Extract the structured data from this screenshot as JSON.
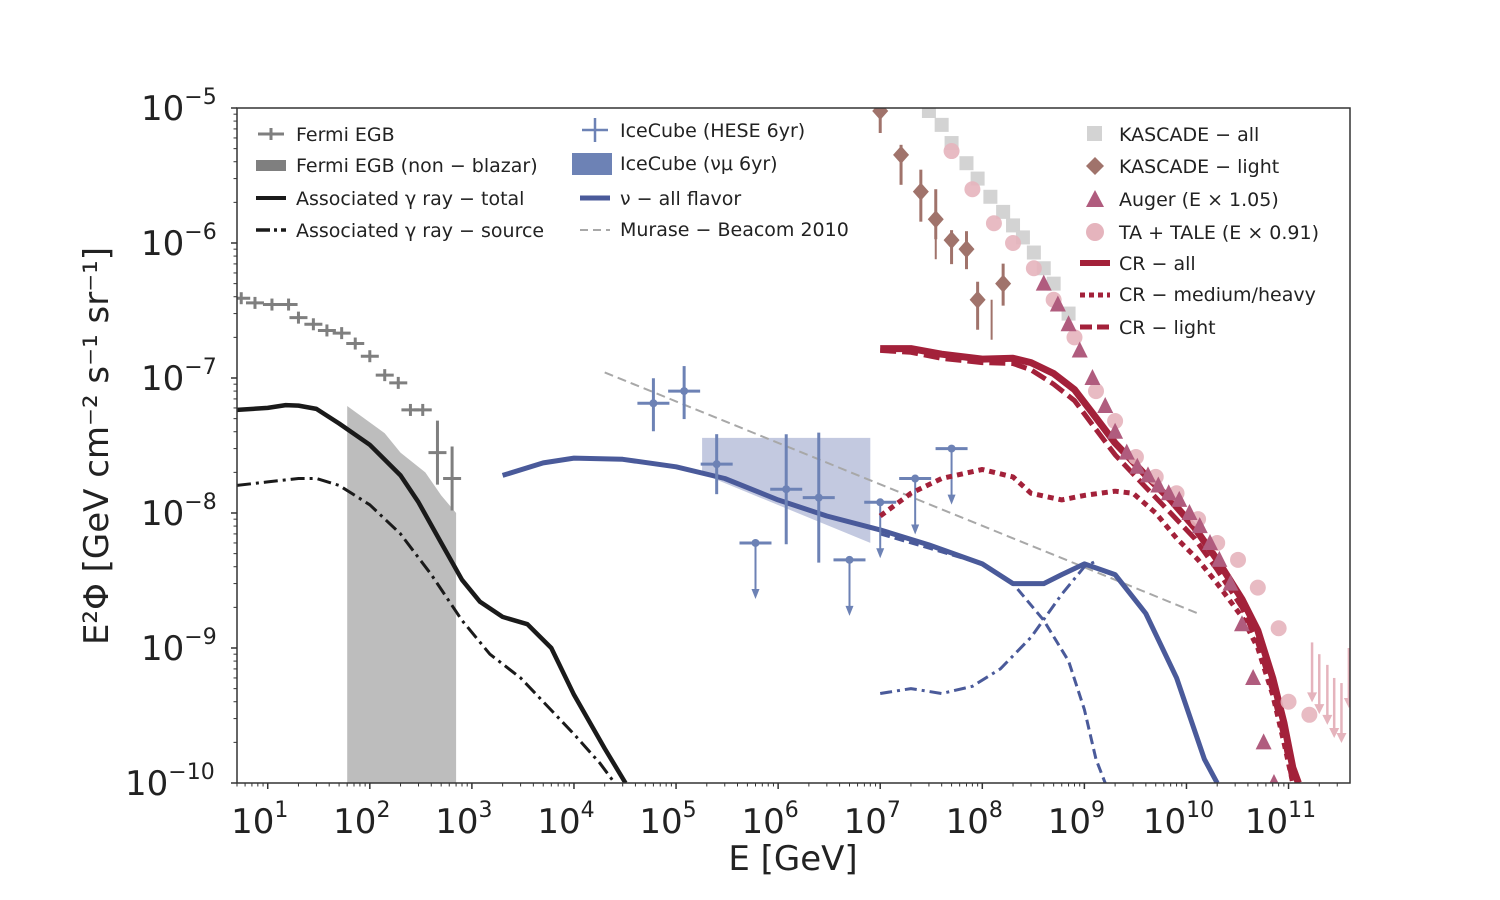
{
  "chart_data": {
    "type": "line",
    "xlabel": "E [GeV]",
    "ylabel": "E²Φ [GeV cm⁻² s⁻¹ sr⁻¹]",
    "xscale": "log",
    "yscale": "log",
    "xlim": [
      5,
      400000000000
    ],
    "ylim": [
      1e-10,
      1e-05
    ],
    "x_ticks": [
      {
        "value": 10,
        "base": "10",
        "exp": "1"
      },
      {
        "value": 100,
        "base": "10",
        "exp": "2"
      },
      {
        "value": 1000,
        "base": "10",
        "exp": "3"
      },
      {
        "value": 10000,
        "base": "10",
        "exp": "4"
      },
      {
        "value": 100000,
        "base": "10",
        "exp": "5"
      },
      {
        "value": 1000000,
        "base": "10",
        "exp": "6"
      },
      {
        "value": 10000000,
        "base": "10",
        "exp": "7"
      },
      {
        "value": 100000000,
        "base": "10",
        "exp": "8"
      },
      {
        "value": 1000000000,
        "base": "10",
        "exp": "9"
      },
      {
        "value": 10000000000,
        "base": "10",
        "exp": "10"
      },
      {
        "value": 100000000000,
        "base": "10",
        "exp": "11"
      }
    ],
    "y_ticks": [
      {
        "value": 1e-05,
        "base": "10",
        "exp": "−5"
      },
      {
        "value": 1e-06,
        "base": "10",
        "exp": "−6"
      },
      {
        "value": 1e-07,
        "base": "10",
        "exp": "−7"
      },
      {
        "value": 1e-08,
        "base": "10",
        "exp": "−8"
      },
      {
        "value": 1e-09,
        "base": "10",
        "exp": "−9"
      },
      {
        "value": 1e-10,
        "base": "10",
        "exp": "−10"
      }
    ],
    "legend": {
      "col1": [
        "Fermi EGB",
        "Fermi EGB (non − blazar)",
        "Associated γ ray − total",
        "Associated γ ray − source"
      ],
      "col2": [
        "IceCube (HESE 6yr)",
        "IceCube (νμ 6yr)",
        "ν − all flavor",
        "Murase − Beacom 2010"
      ],
      "col3": [
        "KASCADE − all",
        "KASCADE − light",
        "Auger (E × 1.05)",
        "TA + TALE (E × 0.91)",
        "CR − all",
        "CR − medium/heavy",
        "CR − light"
      ]
    },
    "colors": {
      "fermi": "#7f7f7f",
      "fermi_band": "#bdbdbd",
      "gamma": "#1a1a1a",
      "neutrino": "#4a5a9a",
      "neutrino_band": "#c3c9e0",
      "icecube": "#6d82b5",
      "murase": "#a8a8a8",
      "cr": "#a3213a",
      "kascade_all": "#d3d3d3",
      "kascade_light": "#a0736b",
      "auger": "#b05c7e",
      "ta": "#e5b4bd"
    },
    "series": [
      {
        "name": "Fermi EGB",
        "kind": "errorbar",
        "points": [
          [
            5.5,
            3.9e-07
          ],
          [
            7.5,
            3.6e-07
          ],
          [
            11,
            3.5e-07
          ],
          [
            16,
            3.5e-07
          ],
          [
            20,
            2.8e-07
          ],
          [
            28,
            2.5e-07
          ],
          [
            38,
            2.25e-07
          ],
          [
            53,
            2.15e-07
          ],
          [
            72,
            1.8e-07
          ],
          [
            100,
            1.45e-07
          ],
          [
            140,
            1.05e-07
          ],
          [
            190,
            9.2e-08
          ],
          [
            250,
            5.8e-08
          ],
          [
            330,
            5.8e-08
          ],
          [
            460,
            2.8e-08
          ],
          [
            640,
            1.8e-08
          ]
        ]
      },
      {
        "name": "Fermi EGB (non − blazar)",
        "kind": "band",
        "upper": [
          [
            60,
            6.2e-08
          ],
          [
            140,
            3.9e-08
          ],
          [
            200,
            2.8e-08
          ],
          [
            350,
            2e-08
          ],
          [
            500,
            1.35e-08
          ],
          [
            700,
            1e-08
          ]
        ],
        "lower": [
          [
            60,
            1e-10
          ],
          [
            700,
            1e-10
          ]
        ]
      },
      {
        "name": "Associated γ ray − total",
        "kind": "line",
        "points": [
          [
            5,
            5.8e-08
          ],
          [
            10,
            6e-08
          ],
          [
            15,
            6.3e-08
          ],
          [
            20,
            6.25e-08
          ],
          [
            30,
            5.9e-08
          ],
          [
            50,
            4.6e-08
          ],
          [
            100,
            3.2e-08
          ],
          [
            200,
            1.9e-08
          ],
          [
            300,
            1.2e-08
          ],
          [
            500,
            6e-09
          ],
          [
            800,
            3.2e-09
          ],
          [
            1200,
            2.2e-09
          ],
          [
            2000,
            1.7e-09
          ],
          [
            3500,
            1.5e-09
          ],
          [
            6000,
            1e-09
          ],
          [
            10000,
            4.5e-10
          ],
          [
            20000,
            1.8e-10
          ],
          [
            32000,
            1e-10
          ]
        ]
      },
      {
        "name": "Associated γ ray − source",
        "kind": "line",
        "points": [
          [
            5,
            1.6e-08
          ],
          [
            10,
            1.7e-08
          ],
          [
            20,
            1.8e-08
          ],
          [
            30,
            1.8e-08
          ],
          [
            50,
            1.6e-08
          ],
          [
            100,
            1.15e-08
          ],
          [
            200,
            7e-09
          ],
          [
            400,
            3.5e-09
          ],
          [
            800,
            1.6e-09
          ],
          [
            1500,
            9e-10
          ],
          [
            3000,
            6e-10
          ],
          [
            5000,
            4e-10
          ],
          [
            10000,
            2.3e-10
          ],
          [
            18000,
            1.4e-10
          ],
          [
            25000,
            1e-10
          ]
        ]
      },
      {
        "name": "IceCube (HESE 6yr)",
        "kind": "errorbar",
        "points": [
          [
            60000,
            6.5e-08
          ],
          [
            120000,
            8e-08
          ],
          [
            250000,
            2.3e-08
          ],
          [
            600000,
            6e-09
          ],
          [
            1200000,
            1.5e-08
          ],
          [
            2500000,
            1.3e-08
          ],
          [
            5000000,
            4.5e-09
          ],
          [
            10000000,
            1.2e-08
          ],
          [
            22000000,
            1.8e-08
          ],
          [
            50000000,
            3e-08
          ]
        ]
      },
      {
        "name": "IceCube (νμ 6yr)",
        "kind": "band",
        "upper": [
          [
            180000,
            3.6e-08
          ],
          [
            8000000,
            3.6e-08
          ]
        ],
        "lower": [
          [
            180000,
            1.95e-08
          ],
          [
            8000000,
            6e-09
          ]
        ]
      },
      {
        "name": "ν − all flavor",
        "kind": "line",
        "points": [
          [
            2000,
            1.9e-08
          ],
          [
            5000,
            2.35e-08
          ],
          [
            10000,
            2.55e-08
          ],
          [
            30000,
            2.5e-08
          ],
          [
            100000,
            2.2e-08
          ],
          [
            300000,
            1.8e-08
          ],
          [
            1000000,
            1.25e-08
          ],
          [
            3000000,
            9.5e-09
          ],
          [
            10000000,
            7.5e-09
          ],
          [
            30000000,
            5.8e-09
          ],
          [
            100000000,
            4.2e-09
          ],
          [
            200000000,
            3e-09
          ],
          [
            400000000,
            3e-09
          ],
          [
            600000000,
            3.5e-09
          ],
          [
            1000000000,
            4.2e-09
          ],
          [
            2000000000,
            3.5e-09
          ],
          [
            4000000000,
            1.8e-09
          ],
          [
            8000000000,
            6e-10
          ],
          [
            15000000000,
            1.5e-10
          ],
          [
            20000000000,
            1e-10
          ]
        ]
      },
      {
        "name": "ν − source (dash-dot)",
        "kind": "line",
        "points": [
          [
            10000000,
            4.6e-10
          ],
          [
            20000000,
            5e-10
          ],
          [
            40000000,
            4.6e-10
          ],
          [
            80000000,
            5.2e-10
          ],
          [
            150000000,
            7e-10
          ],
          [
            300000000,
            1.2e-09
          ],
          [
            600000000,
            2.5e-09
          ],
          [
            1000000000,
            4e-09
          ],
          [
            1300000000,
            4.4e-09
          ]
        ]
      },
      {
        "name": "ν − CR (dashed)",
        "kind": "line",
        "points": [
          [
            10000000,
            7e-09
          ],
          [
            30000000,
            5.5e-09
          ],
          [
            100000000,
            4.2e-09
          ],
          [
            200000000,
            3e-09
          ],
          [
            400000000,
            1.6e-09
          ],
          [
            700000000,
            8e-10
          ],
          [
            1000000000,
            3.5e-10
          ],
          [
            1300000000,
            1.5e-10
          ],
          [
            1600000000,
            1e-10
          ]
        ]
      },
      {
        "name": "Murase − Beacom 2010",
        "kind": "line",
        "points": [
          [
            20000,
            1.1e-07
          ],
          [
            13000000000,
            1.8e-09
          ]
        ]
      },
      {
        "name": "KASCADE − all",
        "kind": "scatter",
        "points": [
          [
            30000000,
            9.5e-06
          ],
          [
            40000000,
            7.5e-06
          ],
          [
            50000000,
            5.5e-06
          ],
          [
            70000000,
            3.9e-06
          ],
          [
            90000000,
            3e-06
          ],
          [
            120000000,
            2.2e-06
          ],
          [
            160000000,
            1.7e-06
          ],
          [
            200000000,
            1.35e-06
          ],
          [
            250000000,
            1.1e-06
          ],
          [
            320000000,
            8.5e-07
          ],
          [
            400000000,
            6.5e-07
          ],
          [
            500000000,
            5e-07
          ],
          [
            700000000,
            3e-07
          ]
        ]
      },
      {
        "name": "KASCADE − light",
        "kind": "errorbar",
        "points": [
          [
            10000000,
            9.5e-06
          ],
          [
            16000000,
            4.5e-06
          ],
          [
            25000000,
            2.4e-06
          ],
          [
            35000000,
            1.5e-06
          ],
          [
            50000000,
            1.05e-06
          ],
          [
            70000000,
            9e-07
          ],
          [
            90000000,
            3.8e-07
          ],
          [
            160000000,
            5e-07
          ]
        ]
      },
      {
        "name": "Auger (E × 1.05)",
        "kind": "scatter",
        "points": [
          [
            400000000,
            5e-07
          ],
          [
            550000000,
            3.5e-07
          ],
          [
            700000000,
            2.5e-07
          ],
          [
            900000000,
            1.6e-07
          ],
          [
            1200000000,
            1e-07
          ],
          [
            1600000000,
            6.2e-08
          ],
          [
            2000000000,
            4e-08
          ],
          [
            2600000000,
            2.8e-08
          ],
          [
            3300000000,
            2.2e-08
          ],
          [
            4200000000,
            1.9e-08
          ],
          [
            5300000000,
            1.6e-08
          ],
          [
            6700000000,
            1.4e-08
          ],
          [
            8500000000,
            1.25e-08
          ],
          [
            10700000000,
            1e-08
          ],
          [
            13500000000,
            8e-09
          ],
          [
            17000000000,
            6e-09
          ],
          [
            21000000000,
            4.5e-09
          ],
          [
            27000000000,
            3e-09
          ],
          [
            35000000000,
            1.5e-09
          ],
          [
            45000000000,
            6e-10
          ],
          [
            57000000000,
            2e-10
          ],
          [
            72000000000,
            1e-10
          ]
        ]
      },
      {
        "name": "TA + TALE (E × 0.91)",
        "kind": "scatter",
        "points": [
          [
            50000000,
            4.8e-06
          ],
          [
            80000000,
            2.5e-06
          ],
          [
            130000000,
            1.4e-06
          ],
          [
            200000000,
            1e-06
          ],
          [
            320000000,
            6.5e-07
          ],
          [
            500000000,
            3.8e-07
          ],
          [
            800000000,
            2e-07
          ],
          [
            1300000000,
            8e-08
          ],
          [
            2000000000,
            4.8e-08
          ],
          [
            3200000000,
            2.6e-08
          ],
          [
            5000000000,
            1.85e-08
          ],
          [
            8000000000,
            1.4e-08
          ],
          [
            13000000000,
            9e-09
          ],
          [
            20000000000,
            6e-09
          ],
          [
            32000000000,
            4.5e-09
          ],
          [
            50000000000,
            2.8e-09
          ],
          [
            80000000000,
            1.4e-09
          ],
          [
            100000000000,
            4e-10
          ],
          [
            160000000000,
            3.2e-10
          ]
        ]
      },
      {
        "name": "CR − all",
        "kind": "line",
        "points": [
          [
            10000000,
            1.65e-07
          ],
          [
            20000000,
            1.65e-07
          ],
          [
            40000000,
            1.5e-07
          ],
          [
            100000000,
            1.38e-07
          ],
          [
            200000000,
            1.4e-07
          ],
          [
            300000000,
            1.3e-07
          ],
          [
            500000000,
            1.08e-07
          ],
          [
            800000000,
            8.2e-08
          ],
          [
            1200000000,
            5.5e-08
          ],
          [
            2000000000,
            3.3e-08
          ],
          [
            4000000000,
            1.9e-08
          ],
          [
            7000000000,
            1.25e-08
          ],
          [
            12000000000,
            7.8e-09
          ],
          [
            20000000000,
            4.5e-09
          ],
          [
            35000000000,
            2.3e-09
          ],
          [
            50000000000,
            1.35e-09
          ],
          [
            70000000000,
            6e-10
          ],
          [
            90000000000,
            2.8e-10
          ],
          [
            110000000000,
            1.3e-10
          ],
          [
            125000000000,
            1e-10
          ]
        ]
      },
      {
        "name": "CR − medium/heavy",
        "kind": "line",
        "points": [
          [
            10000000,
            9.5e-09
          ],
          [
            20000000,
            1.4e-08
          ],
          [
            40000000,
            1.8e-08
          ],
          [
            100000000,
            2.1e-08
          ],
          [
            200000000,
            1.85e-08
          ],
          [
            300000000,
            1.4e-08
          ],
          [
            600000000,
            1.25e-08
          ],
          [
            1000000000,
            1.35e-08
          ],
          [
            2000000000,
            1.45e-08
          ],
          [
            3000000000,
            1.4e-08
          ],
          [
            5000000000,
            1e-08
          ],
          [
            8000000000,
            6.5e-09
          ],
          [
            13000000000,
            4.5e-09
          ],
          [
            20000000000,
            3e-09
          ],
          [
            35000000000,
            1.7e-09
          ],
          [
            50000000000,
            1e-09
          ],
          [
            70000000000,
            4.5e-10
          ],
          [
            90000000000,
            2e-10
          ],
          [
            110000000000,
            1e-10
          ]
        ]
      },
      {
        "name": "CR − light",
        "kind": "line",
        "points": [
          [
            10000000,
            1.6e-07
          ],
          [
            20000000,
            1.55e-07
          ],
          [
            40000000,
            1.4e-07
          ],
          [
            100000000,
            1.3e-07
          ],
          [
            200000000,
            1.28e-07
          ],
          [
            300000000,
            1.15e-07
          ],
          [
            500000000,
            9e-08
          ],
          [
            800000000,
            6.8e-08
          ],
          [
            1200000000,
            4.5e-08
          ],
          [
            2000000000,
            2.7e-08
          ],
          [
            4000000000,
            1.55e-08
          ],
          [
            7000000000,
            1e-08
          ],
          [
            12000000000,
            6.5e-09
          ],
          [
            20000000000,
            3.8e-09
          ],
          [
            35000000000,
            2e-09
          ],
          [
            50000000000,
            1.1e-09
          ],
          [
            70000000000,
            4.8e-10
          ],
          [
            90000000000,
            2.2e-10
          ],
          [
            110000000000,
            1e-10
          ]
        ]
      }
    ]
  }
}
